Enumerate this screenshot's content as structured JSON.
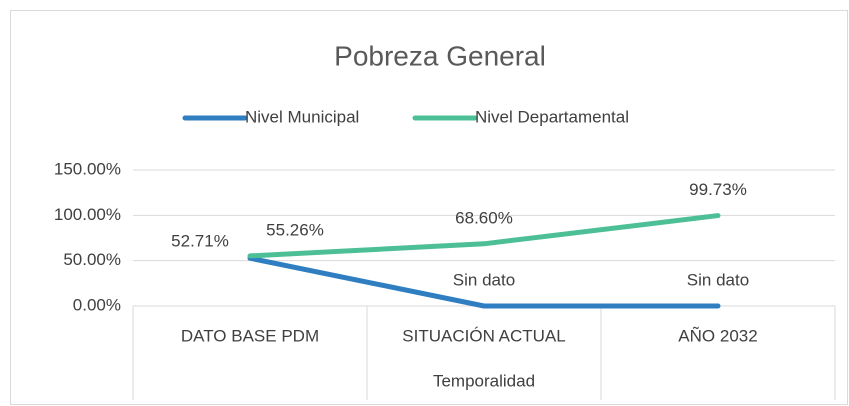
{
  "chart_data": {
    "type": "line",
    "title": "Pobreza General",
    "categories": [
      "DATO BASE PDM",
      "SITUACIÓN ACTUAL",
      "AÑO 2032"
    ],
    "x_label": "Temporalidad",
    "series": [
      {
        "name": "Nivel Municipal",
        "color": "#2f7ec1",
        "values": [
          52.71,
          0,
          0
        ],
        "value_labels": [
          "52.71%",
          "Sin dato",
          "Sin dato"
        ]
      },
      {
        "name": "Nivel Departamental",
        "color": "#4dbf96",
        "values": [
          55.26,
          68.6,
          99.73
        ],
        "value_labels": [
          "55.26%",
          "68.60%",
          "99.73%"
        ]
      }
    ],
    "ylim": [
      0,
      150
    ],
    "yticks": [
      {
        "value": 0,
        "label": "0.00%"
      },
      {
        "value": 50,
        "label": "50.00%"
      },
      {
        "value": 100,
        "label": "100.00%"
      },
      {
        "value": 150,
        "label": "150.00%"
      }
    ],
    "grid": true,
    "legend": "top"
  }
}
